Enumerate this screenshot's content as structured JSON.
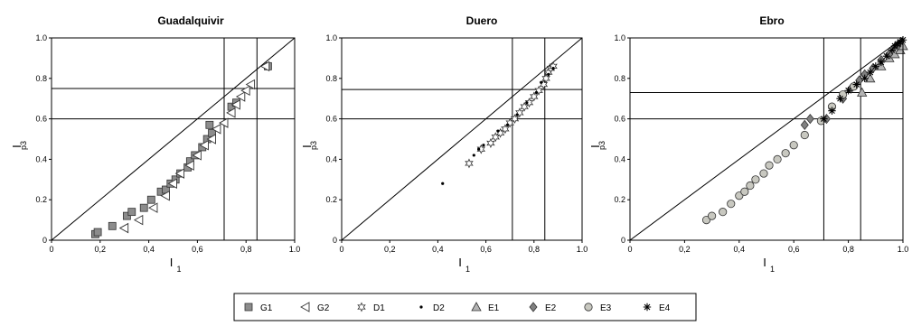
{
  "chart_data": [
    {
      "type": "scatter",
      "title": "Guadalquivir",
      "xlabel": "I",
      "xlabel_sub": "1",
      "ylabel": "I",
      "ylabel_sub": "p3",
      "xlim": [
        0,
        1
      ],
      "ylim": [
        0,
        1
      ],
      "xticks": [
        "0",
        "0,2",
        "0,4",
        "0,6",
        "0,8",
        "1.0"
      ],
      "yticks": [
        "0",
        "0.2",
        "0.4",
        "0.6",
        "0.8",
        "1.0"
      ],
      "reference_lines": {
        "diagonal": true,
        "vertical": [
          0.71,
          0.845
        ],
        "horizontal": [
          0.6,
          0.75
        ]
      },
      "series": [
        {
          "name": "G1",
          "marker": "square",
          "color": "#8c8c8c",
          "points": [
            [
              0.18,
              0.03
            ],
            [
              0.19,
              0.04
            ],
            [
              0.25,
              0.07
            ],
            [
              0.31,
              0.12
            ],
            [
              0.33,
              0.14
            ],
            [
              0.38,
              0.16
            ],
            [
              0.41,
              0.2
            ],
            [
              0.45,
              0.24
            ],
            [
              0.47,
              0.25
            ],
            [
              0.49,
              0.28
            ],
            [
              0.51,
              0.3
            ],
            [
              0.53,
              0.33
            ],
            [
              0.56,
              0.36
            ],
            [
              0.57,
              0.39
            ],
            [
              0.59,
              0.42
            ],
            [
              0.62,
              0.46
            ],
            [
              0.64,
              0.5
            ],
            [
              0.65,
              0.57
            ],
            [
              0.66,
              0.53
            ],
            [
              0.74,
              0.66
            ],
            [
              0.76,
              0.68
            ],
            [
              0.89,
              0.86
            ]
          ]
        },
        {
          "name": "G2",
          "marker": "triangle-left",
          "color": "#ffffff",
          "points": [
            [
              0.3,
              0.06
            ],
            [
              0.36,
              0.1
            ],
            [
              0.42,
              0.16
            ],
            [
              0.47,
              0.22
            ],
            [
              0.5,
              0.28
            ],
            [
              0.53,
              0.33
            ],
            [
              0.57,
              0.37
            ],
            [
              0.6,
              0.42
            ],
            [
              0.63,
              0.47
            ],
            [
              0.66,
              0.5
            ],
            [
              0.68,
              0.55
            ],
            [
              0.71,
              0.58
            ],
            [
              0.74,
              0.63
            ],
            [
              0.76,
              0.67
            ],
            [
              0.78,
              0.71
            ],
            [
              0.8,
              0.74
            ],
            [
              0.82,
              0.77
            ],
            [
              0.88,
              0.86
            ]
          ]
        }
      ]
    },
    {
      "type": "scatter",
      "title": "Duero",
      "xlabel": "I",
      "xlabel_sub": "1",
      "ylabel": "I",
      "ylabel_sub": "p3",
      "xlim": [
        0,
        1
      ],
      "ylim": [
        0,
        1
      ],
      "xticks": [
        "0",
        "0,2",
        "0,4",
        "0,6",
        "0,8",
        "1.0"
      ],
      "yticks": [
        "0",
        "0.2",
        "0.4",
        "0.6",
        "0.8",
        "1.0"
      ],
      "reference_lines": {
        "diagonal": true,
        "vertical": [
          0.71,
          0.845
        ],
        "horizontal": [
          0.6,
          0.745
        ]
      },
      "series": [
        {
          "name": "D1",
          "marker": "star6",
          "color": "#ffffff",
          "points": [
            [
              0.53,
              0.38
            ],
            [
              0.58,
              0.45
            ],
            [
              0.62,
              0.48
            ],
            [
              0.64,
              0.51
            ],
            [
              0.66,
              0.53
            ],
            [
              0.68,
              0.55
            ],
            [
              0.7,
              0.58
            ],
            [
              0.72,
              0.6
            ],
            [
              0.74,
              0.63
            ],
            [
              0.76,
              0.66
            ],
            [
              0.78,
              0.68
            ],
            [
              0.8,
              0.71
            ],
            [
              0.82,
              0.74
            ],
            [
              0.84,
              0.77
            ],
            [
              0.85,
              0.8
            ],
            [
              0.86,
              0.83
            ],
            [
              0.87,
              0.85
            ],
            [
              0.88,
              0.86
            ]
          ]
        },
        {
          "name": "D2",
          "marker": "dot",
          "color": "#000000",
          "points": [
            [
              0.42,
              0.28
            ],
            [
              0.55,
              0.42
            ],
            [
              0.57,
              0.45
            ],
            [
              0.59,
              0.47
            ],
            [
              0.65,
              0.54
            ],
            [
              0.69,
              0.57
            ],
            [
              0.73,
              0.62
            ],
            [
              0.77,
              0.68
            ],
            [
              0.81,
              0.73
            ],
            [
              0.83,
              0.78
            ],
            [
              0.86,
              0.82
            ],
            [
              0.88,
              0.85
            ]
          ]
        }
      ]
    },
    {
      "type": "scatter",
      "title": "Ebro",
      "xlabel": "I",
      "xlabel_sub": "1",
      "ylabel": "I",
      "ylabel_sub": "p3",
      "xlim": [
        0,
        1
      ],
      "ylim": [
        0,
        1
      ],
      "xticks": [
        "0",
        "0,2",
        "0,4",
        "0,6",
        "0,8",
        "1.0"
      ],
      "yticks": [
        "0",
        "0.2",
        "0.4",
        "0.6",
        "0.8",
        "1.0"
      ],
      "reference_lines": {
        "diagonal": true,
        "vertical": [
          0.71,
          0.845
        ],
        "horizontal": [
          0.6,
          0.73
        ]
      },
      "series": [
        {
          "name": "E1",
          "marker": "triangle-up",
          "color": "#b4b4b4",
          "points": [
            [
              0.85,
              0.73
            ],
            [
              0.88,
              0.8
            ],
            [
              0.92,
              0.86
            ],
            [
              0.95,
              0.9
            ],
            [
              0.97,
              0.92
            ],
            [
              0.99,
              0.94
            ],
            [
              1.0,
              0.96
            ]
          ]
        },
        {
          "name": "E2",
          "marker": "diamond",
          "color": "#808080",
          "points": [
            [
              0.64,
              0.57
            ],
            [
              0.66,
              0.6
            ],
            [
              0.72,
              0.6
            ],
            [
              0.78,
              0.7
            ],
            [
              0.81,
              0.75
            ],
            [
              0.84,
              0.79
            ],
            [
              0.86,
              0.82
            ],
            [
              0.89,
              0.85
            ],
            [
              0.92,
              0.89
            ],
            [
              0.95,
              0.92
            ],
            [
              0.98,
              0.96
            ]
          ]
        },
        {
          "name": "E3",
          "marker": "circle",
          "color": "#c8c8c0",
          "points": [
            [
              0.28,
              0.1
            ],
            [
              0.3,
              0.12
            ],
            [
              0.34,
              0.14
            ],
            [
              0.37,
              0.18
            ],
            [
              0.4,
              0.22
            ],
            [
              0.42,
              0.24
            ],
            [
              0.44,
              0.27
            ],
            [
              0.46,
              0.3
            ],
            [
              0.49,
              0.33
            ],
            [
              0.51,
              0.37
            ],
            [
              0.54,
              0.4
            ],
            [
              0.57,
              0.43
            ],
            [
              0.6,
              0.47
            ],
            [
              0.64,
              0.52
            ],
            [
              0.7,
              0.59
            ],
            [
              0.74,
              0.66
            ],
            [
              0.78,
              0.72
            ],
            [
              0.82,
              0.76
            ]
          ]
        },
        {
          "name": "E4",
          "marker": "asterisk",
          "color": "#000000",
          "points": [
            [
              0.71,
              0.6
            ],
            [
              0.74,
              0.64
            ],
            [
              0.77,
              0.7
            ],
            [
              0.8,
              0.74
            ],
            [
              0.83,
              0.77
            ],
            [
              0.86,
              0.8
            ],
            [
              0.88,
              0.83
            ],
            [
              0.9,
              0.86
            ],
            [
              0.92,
              0.88
            ],
            [
              0.94,
              0.91
            ],
            [
              0.96,
              0.94
            ],
            [
              0.97,
              0.96
            ],
            [
              0.98,
              0.97
            ],
            [
              0.99,
              0.98
            ],
            [
              1.0,
              0.99
            ]
          ]
        }
      ]
    }
  ],
  "legend": {
    "entries": [
      {
        "label": "G1",
        "marker": "square",
        "color": "#8c8c8c"
      },
      {
        "label": "G2",
        "marker": "triangle-left",
        "color": "#ffffff"
      },
      {
        "label": "D1",
        "marker": "star6",
        "color": "#ffffff"
      },
      {
        "label": "D2",
        "marker": "dot",
        "color": "#000000"
      },
      {
        "label": "E1",
        "marker": "triangle-up",
        "color": "#b4b4b4"
      },
      {
        "label": "E2",
        "marker": "diamond",
        "color": "#808080"
      },
      {
        "label": "E3",
        "marker": "circle",
        "color": "#c8c8c0"
      },
      {
        "label": "E4",
        "marker": "asterisk",
        "color": "#000000"
      }
    ]
  }
}
